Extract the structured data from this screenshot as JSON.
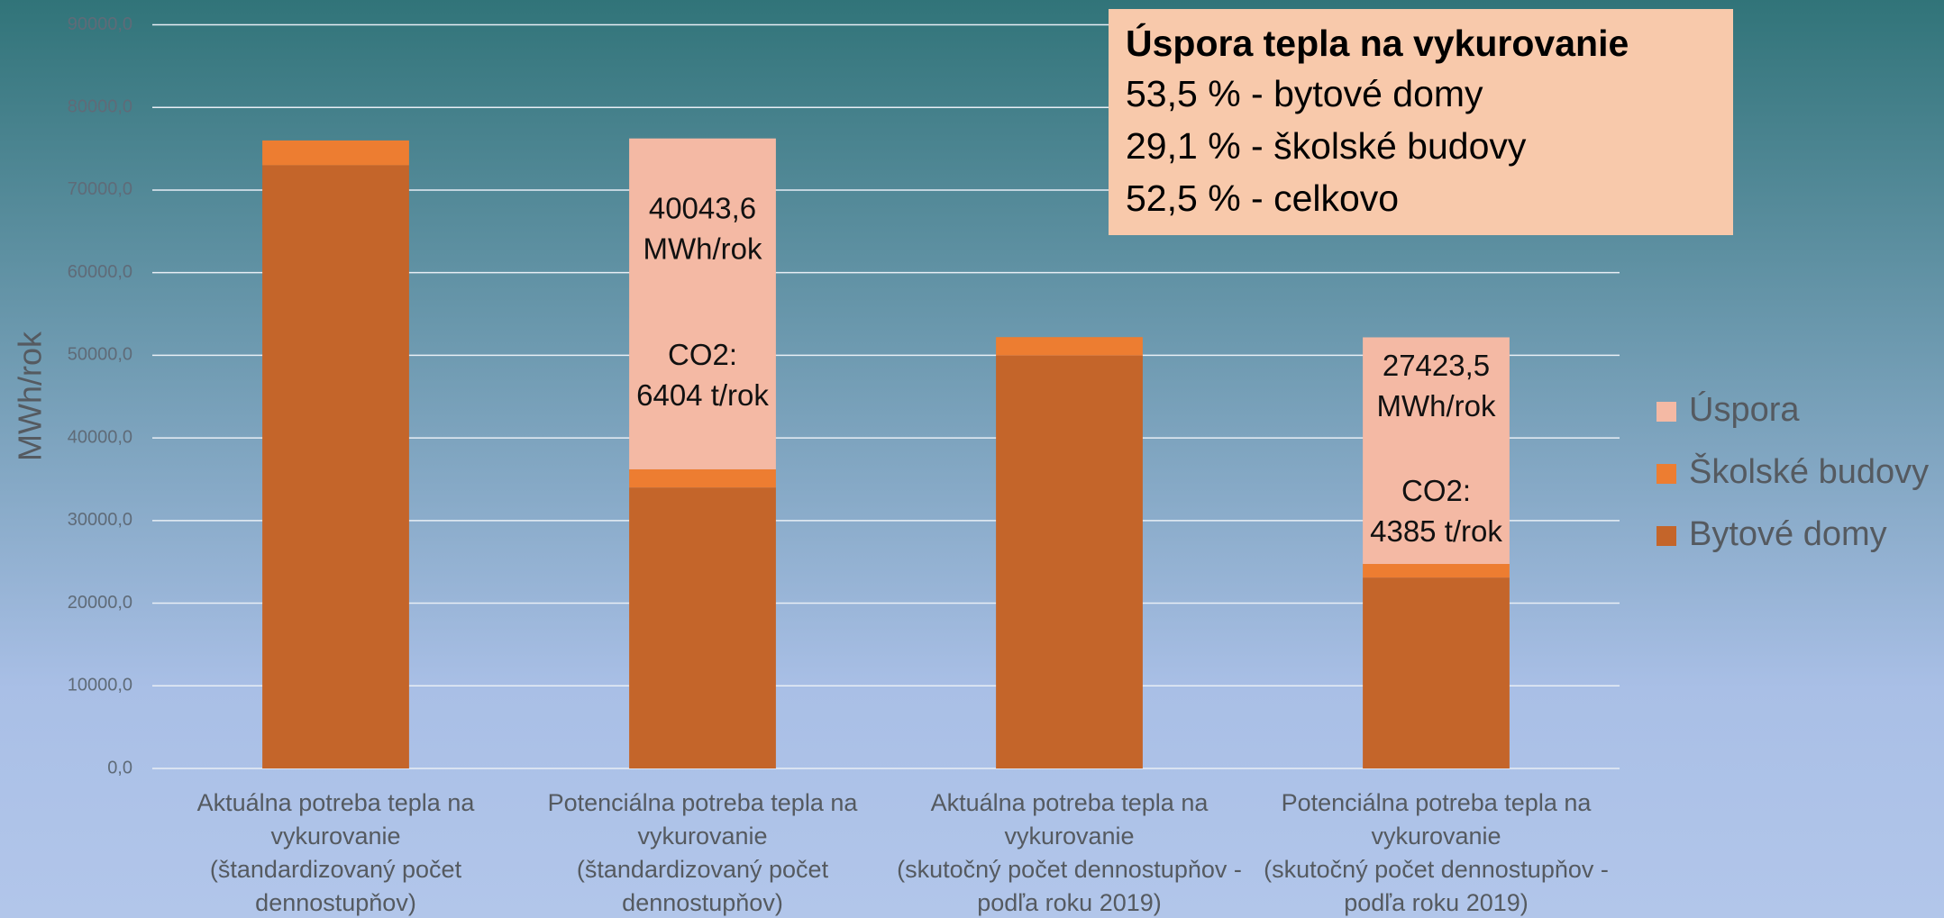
{
  "chart_data": {
    "type": "stacked_bar",
    "y_axis_label": "MWh/rok",
    "categories": [
      [
        "Aktuálna potreba tepla na",
        "vykurovanie",
        "(štandardizovaný počet",
        "dennostupňov)"
      ],
      [
        "Potenciálna potreba tepla na",
        "vykurovanie",
        "(štandardizovaný počet",
        "dennostupňov)"
      ],
      [
        "Aktuálna potreba tepla na",
        "vykurovanie",
        "(skutočný počet dennostupňov -",
        "podľa roku 2019)"
      ],
      [
        "Potenciálna potreba tepla na",
        "vykurovanie",
        "(skutočný počet dennostupňov -",
        "podľa roku 2019)"
      ]
    ],
    "series": [
      {
        "name": "Bytové domy",
        "color": "#c4652a",
        "values": [
          73000,
          34000,
          50000,
          23100
        ]
      },
      {
        "name": "Školské budovy",
        "color": "#ed7d31",
        "values": [
          3000,
          2200,
          2200,
          1650
        ]
      },
      {
        "name": "Úspora",
        "color": "#f4b9a4",
        "values": [
          null,
          40043.6,
          null,
          27423.5
        ],
        "value_labels": [
          null,
          [
            "40043,6",
            "MWh/rok"
          ],
          null,
          [
            "27423,5",
            "MWh/rok"
          ]
        ],
        "co2_labels": [
          null,
          [
            "CO2:",
            "6404 t/rok"
          ],
          null,
          [
            "CO2:",
            "4385 t/rok"
          ]
        ]
      }
    ],
    "ylim": [
      0,
      90000
    ],
    "yticks": [
      {
        "value": 0,
        "label": "0,0"
      },
      {
        "value": 10000,
        "label": "10000,0"
      },
      {
        "value": 20000,
        "label": "20000,0"
      },
      {
        "value": 30000,
        "label": "30000,0"
      },
      {
        "value": 40000,
        "label": "40000,0"
      },
      {
        "value": 50000,
        "label": "50000,0"
      },
      {
        "value": 60000,
        "label": "60000,0"
      },
      {
        "value": 70000,
        "label": "70000,0"
      },
      {
        "value": 80000,
        "label": "80000,0"
      },
      {
        "value": 90000,
        "label": "90000,0"
      }
    ],
    "grid": true,
    "legend": "right",
    "info_box": {
      "title": "Úspora tepla na vykurovanie",
      "lines": [
        "53,5 % - bytové domy",
        "29,1 % - školské budovy",
        "52,5 % - celkovo"
      ]
    }
  }
}
